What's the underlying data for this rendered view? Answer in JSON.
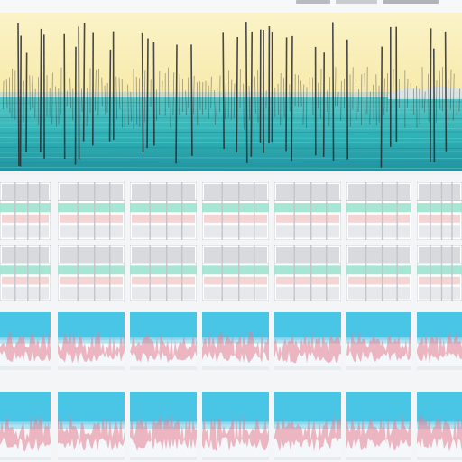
{
  "window": {
    "title": ""
  },
  "colors": {
    "background": "#f3f5f7",
    "sky": "#f7eaaa",
    "sky_light": "#fbf3c8",
    "sea": "#2fb2b6",
    "sea_dark": "#1f8f9c",
    "spike": "#2a2a33",
    "panel_gray": "#d8dadd",
    "panel_stripe": "#9fe3cf",
    "panel_pink": "#f2c9c9",
    "thumb_sky": "#49c6e6",
    "thumb_wave": "#e47d91"
  },
  "toolbar": {
    "buttons": [
      {
        "name": "toolbar-button-1",
        "color": "#b7bbc1"
      },
      {
        "name": "toolbar-button-2",
        "color": "#c8ccd1"
      },
      {
        "name": "toolbar-button-3",
        "color": "#b0b4ba"
      }
    ]
  },
  "main_waveform": {
    "icon": "audio-waveform-icon"
  },
  "thumbnail_grid": {
    "rows": [
      {
        "style": "table"
      },
      {
        "style": "table"
      },
      {
        "style": "wave"
      },
      {
        "style": "wave"
      }
    ],
    "columns": 7
  }
}
